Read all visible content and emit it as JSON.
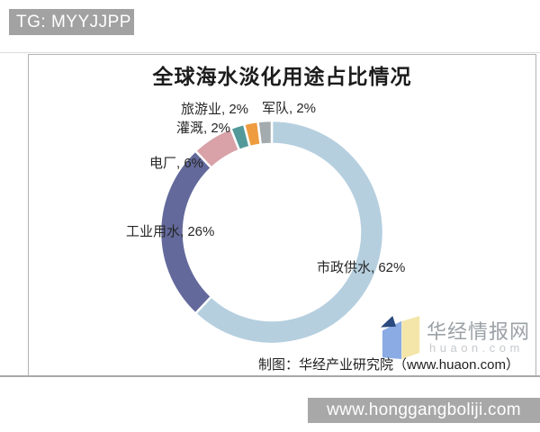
{
  "header": {
    "tg_label": "TG: MYYJJPP"
  },
  "chart": {
    "title": "全球海水淡化用途占比情况",
    "source_note": "制图：华经产业研究院（www.huaon.com）"
  },
  "watermark": {
    "site_name": "华经情报网",
    "site_domain": "huaon.com"
  },
  "footer": {
    "url_bar": "www.honggangboliji.com"
  },
  "chart_data": {
    "type": "pie",
    "subtype": "donut",
    "title": "全球海水淡化用途占比情况",
    "unit": "%",
    "start_angle_deg": 0,
    "direction": "clockwise",
    "legend": "none",
    "labels_position": "outside",
    "segments": [
      {
        "label": "市政供水",
        "value": 62,
        "display": "市政供水, 62%",
        "color": "#b5cfdf"
      },
      {
        "label": "工业用水",
        "value": 26,
        "display": "工业用水, 26%",
        "color": "#63699b"
      },
      {
        "label": "电厂",
        "value": 6,
        "display": "电厂, 6%",
        "color": "#d8a2a8"
      },
      {
        "label": "灌溉",
        "value": 2,
        "display": "灌溉, 2%",
        "color": "#53999a"
      },
      {
        "label": "旅游业",
        "value": 2,
        "display": "旅游业, 2%",
        "color": "#ef9b3f"
      },
      {
        "label": "军队",
        "value": 2,
        "display": "军队, 2%",
        "color": "#a4abae"
      }
    ]
  }
}
